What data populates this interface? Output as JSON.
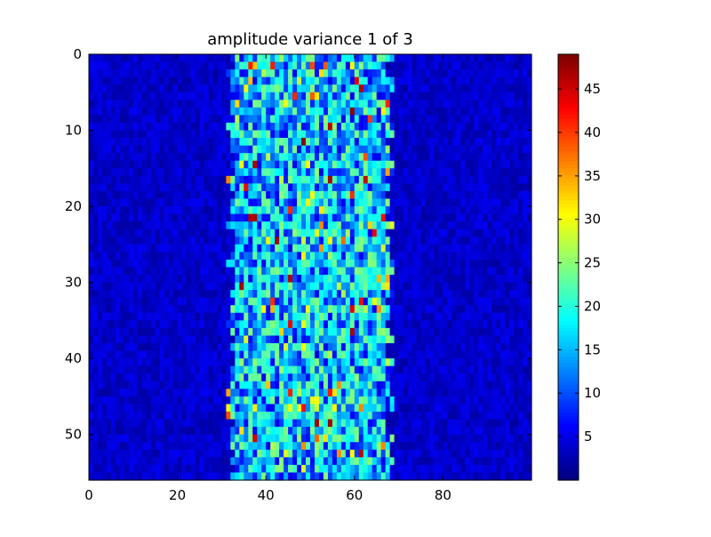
{
  "chart_data": {
    "type": "heatmap",
    "title": "amplitude variance 1 of 3",
    "xlabel": "",
    "ylabel": "",
    "rows": 56,
    "cols": 100,
    "xlim": [
      0,
      100
    ],
    "ylim": [
      56,
      0
    ],
    "x_ticks": [
      0,
      20,
      40,
      60,
      80
    ],
    "y_ticks": [
      0,
      10,
      20,
      30,
      40,
      50
    ],
    "colorbar": {
      "min": 0,
      "max": 49,
      "ticks": [
        5,
        10,
        15,
        20,
        25,
        30,
        35,
        40,
        45
      ],
      "colormap": "jet"
    },
    "grid": false,
    "legend": "none",
    "structure": {
      "background_level_mean": 3,
      "band_col_start": 32,
      "band_col_end": 67,
      "band_level_mean": 15,
      "peak_level": 49
    }
  }
}
